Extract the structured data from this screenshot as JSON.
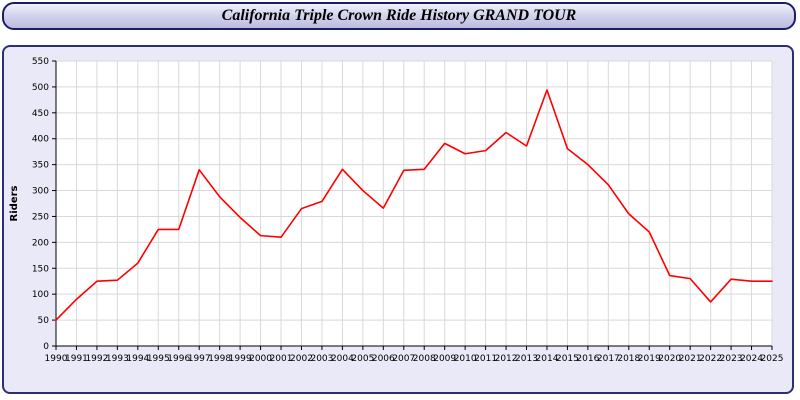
{
  "header": {
    "title": "California Triple Crown Ride History GRAND TOUR"
  },
  "chart_data": {
    "type": "line",
    "title": "California Triple Crown Ride History GRAND TOUR",
    "xlabel": "",
    "ylabel": "Riders",
    "ylim": [
      0,
      550
    ],
    "ytick_step": 50,
    "grid": true,
    "legend": "none",
    "line_color": "#ff0000",
    "plot_bg": "#ffffff",
    "grid_color": "#d9d9d9",
    "panel_bg": "#e9e9f7",
    "categories": [
      "1990",
      "1991",
      "1992",
      "1993",
      "1994",
      "1995",
      "1996",
      "1997",
      "1998",
      "1999",
      "2000",
      "2001",
      "2002",
      "2003",
      "2004",
      "2005",
      "2006",
      "2007",
      "2008",
      "2009",
      "2010",
      "2011",
      "2012",
      "2013",
      "2014",
      "2015",
      "2016",
      "2017",
      "2018",
      "2019",
      "2020",
      "2021",
      "2022",
      "2023",
      "2024",
      "2025"
    ],
    "values": [
      50,
      90,
      125,
      127,
      160,
      225,
      225,
      340,
      288,
      248,
      213,
      210,
      265,
      279,
      341,
      300,
      266,
      339,
      341,
      391,
      371,
      377,
      412,
      386,
      494,
      381,
      350,
      311,
      255,
      220,
      136,
      130,
      85,
      129,
      125,
      125
    ]
  }
}
